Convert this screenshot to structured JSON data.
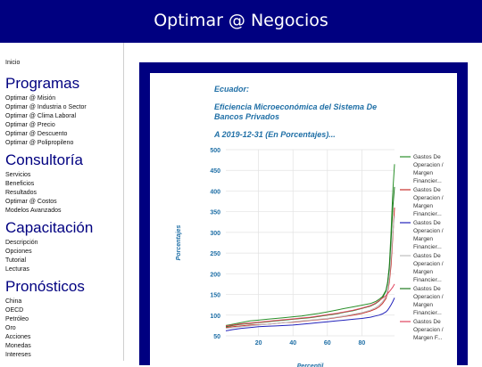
{
  "header": {
    "title": "Optimar @ Negocios"
  },
  "sidebar": {
    "home": "Inicio",
    "sections": [
      {
        "heading": "Programas",
        "items": [
          "Optimar @ Misión",
          "Optimar @ Industria o Sector",
          "Optimar @ Clima Laboral",
          "Optimar @ Precio",
          "Optimar @ Descuento",
          "Optimar @ Polipropileno"
        ]
      },
      {
        "heading": "Consultoría",
        "items": [
          "Servicios",
          "Beneficios",
          "Resultados",
          "Optimar @ Costos",
          "Modelos Avanzados"
        ]
      },
      {
        "heading": "Capacitación",
        "items": [
          "Descripción",
          "Opciones",
          "Tutorial",
          "Lecturas"
        ]
      },
      {
        "heading": "Pronósticos",
        "items": [
          "China",
          "OECD",
          "Petróleo",
          "Oro",
          "Acciones",
          "Monedas",
          "Intereses"
        ]
      }
    ]
  },
  "chart_card": {
    "title_line1": "Ecuador:",
    "title_line2a": "Eficiencia Microeconómica del Sistema De",
    "title_line2b": "Bancos Privados",
    "title_line3": "A 2019-12-31 (En Porcentajes)..."
  },
  "chart_data": {
    "type": "line",
    "xlabel": "Percentil",
    "ylabel": "Porcentajes",
    "xlim": [
      1,
      99
    ],
    "ylim": [
      50,
      500
    ],
    "x_ticks": [
      20,
      40,
      60,
      80
    ],
    "y_ticks": [
      50,
      100,
      150,
      200,
      250,
      300,
      350,
      400,
      450,
      500
    ],
    "grid": true,
    "legend_position": "right",
    "x": [
      1,
      5,
      10,
      15,
      20,
      25,
      30,
      35,
      40,
      45,
      50,
      55,
      60,
      65,
      70,
      75,
      80,
      85,
      88,
      90,
      92,
      94,
      95,
      96,
      97,
      98,
      99
    ],
    "series": [
      {
        "legend": [
          "Gastos De",
          "Operacion /",
          "Margen",
          "Financier..."
        ],
        "color": "#2a8f2a",
        "values": [
          75,
          78,
          82,
          86,
          88,
          90,
          92,
          94,
          96,
          98,
          101,
          104,
          108,
          112,
          116,
          120,
          124,
          128,
          133,
          138,
          145,
          160,
          180,
          220,
          300,
          400,
          465
        ]
      },
      {
        "legend": [
          "Gastos De",
          "Operacion /",
          "Margen",
          "Financier..."
        ],
        "color": "#c9302c",
        "values": [
          70,
          72,
          74,
          76,
          77,
          78,
          80,
          82,
          83,
          85,
          87,
          89,
          91,
          94,
          97,
          100,
          104,
          110,
          115,
          120,
          128,
          140,
          155,
          180,
          220,
          290,
          360
        ]
      },
      {
        "legend": [
          "Gastos De",
          "Operacion /",
          "Margen",
          "Financier..."
        ],
        "color": "#2222bb",
        "values": [
          62,
          65,
          68,
          70,
          72,
          73,
          74,
          75,
          76,
          78,
          80,
          82,
          84,
          86,
          88,
          90,
          92,
          95,
          98,
          100,
          103,
          108,
          112,
          118,
          125,
          133,
          142
        ]
      },
      {
        "legend": [
          "Gastos De",
          "Operacion /",
          "Margen",
          "Financier..."
        ],
        "color": "#bdbdbd",
        "values": [
          68,
          70,
          72,
          74,
          76,
          78,
          80,
          82,
          84,
          86,
          88,
          90,
          92,
          95,
          98,
          102,
          106,
          112,
          118,
          124,
          132,
          145,
          160,
          190,
          240,
          300,
          340
        ]
      },
      {
        "legend": [
          "Gastos De",
          "Operacion /",
          "Margen",
          "Financier..."
        ],
        "color": "#1e7a1e",
        "values": [
          72,
          75,
          78,
          80,
          82,
          84,
          86,
          88,
          90,
          92,
          94,
          97,
          100,
          103,
          107,
          111,
          116,
          122,
          128,
          134,
          142,
          158,
          178,
          215,
          280,
          360,
          410
        ]
      },
      {
        "legend": [
          "Gastos De",
          "Operacion /",
          "Margen F..."
        ],
        "color": "#e0445e",
        "values": [
          74,
          76,
          79,
          81,
          83,
          85,
          87,
          89,
          91,
          93,
          95,
          98,
          101,
          104,
          108,
          112,
          117,
          123,
          129,
          135,
          141,
          147,
          152,
          157,
          162,
          168,
          175
        ]
      }
    ]
  }
}
